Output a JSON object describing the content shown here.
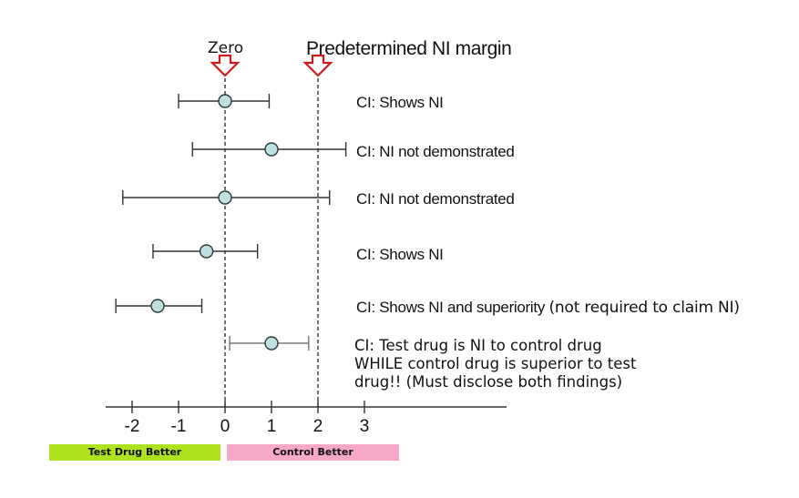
{
  "chart_data": {
    "type": "forest",
    "zero_label": "Zero",
    "margin_label": "Predetermined NI margin",
    "ni_margin": 2,
    "x_ticks": [
      "-2",
      "-1",
      "0",
      "1",
      "2",
      "3"
    ],
    "x_tick_values": [
      -2,
      -1,
      0,
      1,
      2,
      3
    ],
    "rows": [
      {
        "point": 0,
        "lower": -1,
        "upper": 0.95,
        "label": "CI: Shows NI",
        "note": ""
      },
      {
        "point": 1,
        "lower": -0.7,
        "upper": 2.6,
        "label": "CI: NI not demonstrated",
        "note": ""
      },
      {
        "point": 0,
        "lower": -2.2,
        "upper": 2.25,
        "label": "CI: NI not demonstrated",
        "note": ""
      },
      {
        "point": -0.4,
        "lower": -1.55,
        "upper": 0.7,
        "label": "CI: Shows NI",
        "note": ""
      },
      {
        "point": -1.45,
        "lower": -2.35,
        "upper": -0.5,
        "label": "CI: Shows NI and superiority",
        "note": "(not required to claim NI)"
      },
      {
        "point": 1,
        "lower": 0.1,
        "upper": 1.8,
        "label": "",
        "note": ""
      }
    ],
    "last_row_text": [
      "CI: Test drug is NI to control drug",
      "WHILE control drug is superior to test",
      "drug!! (Must disclose both findings)"
    ],
    "bands": {
      "test_better": "Test Drug Better",
      "control_better": "Control Better",
      "test_color": "#b0e11e",
      "control_color": "#f7a8c8"
    },
    "point_color": "#bfe0e0",
    "arrow_color": "#d11a1a"
  }
}
